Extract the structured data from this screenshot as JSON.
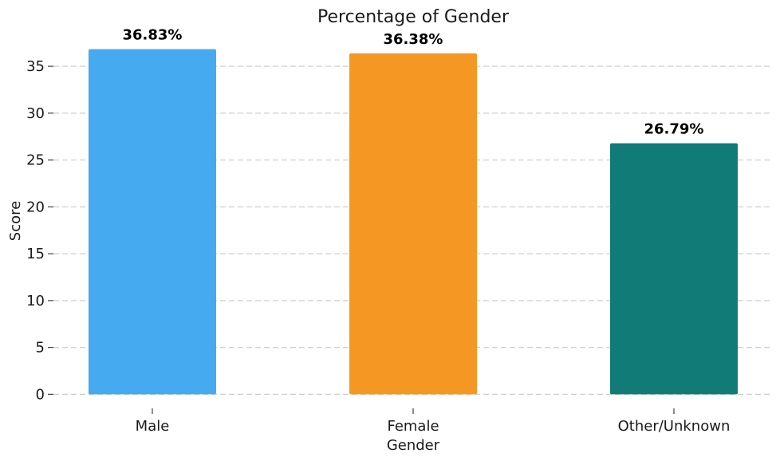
{
  "chart_data": {
    "type": "bar",
    "title": "Percentage of Gender",
    "xlabel": "Gender",
    "ylabel": "Score",
    "categories": [
      "Male",
      "Female",
      "Other/Unknown"
    ],
    "values": [
      36.83,
      36.38,
      26.79
    ],
    "data_labels": [
      "36.83%",
      "36.38%",
      "26.79%"
    ],
    "colors": [
      "#46aaf0",
      "#f59823",
      "#107b77"
    ],
    "yticks": [
      0,
      5,
      10,
      15,
      20,
      25,
      30,
      35
    ],
    "ylim": [
      -1.5,
      38.5
    ],
    "grid": true,
    "grid_axis": "y",
    "grid_style": "dashed",
    "legend": "none"
  }
}
